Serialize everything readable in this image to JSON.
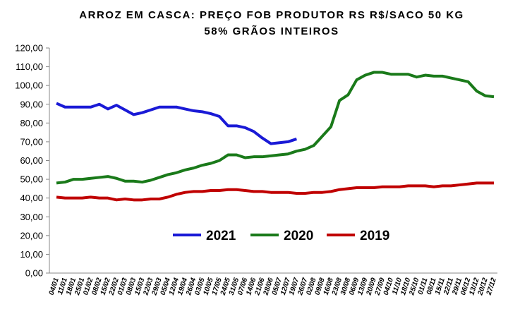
{
  "chart_data": {
    "type": "line",
    "title": "ARROZ EM CASCA: PREÇO FOB PRODUTOR RS R$/SACO 50 KG",
    "subtitle": "58% GRÃOS INTEIROS",
    "categories": [
      "04/01",
      "11/01",
      "18/01",
      "25/01",
      "01/02",
      "08/02",
      "15/02",
      "22/02",
      "01/03",
      "08/03",
      "15/03",
      "22/03",
      "29/03",
      "05/04",
      "12/04",
      "19/04",
      "26/04",
      "03/05",
      "10/05",
      "17/05",
      "24/05",
      "31/05",
      "07/06",
      "14/06",
      "21/06",
      "28/06",
      "05/07",
      "12/07",
      "19/07",
      "26/07",
      "02/08",
      "09/08",
      "16/08",
      "23/08",
      "30/08",
      "06/09",
      "13/09",
      "20/09",
      "27/09",
      "04/10",
      "11/10",
      "18/10",
      "25/10",
      "01/11",
      "08/11",
      "15/11",
      "22/11",
      "29/11",
      "06/12",
      "13/12",
      "20/12",
      "27/12"
    ],
    "series": [
      {
        "name": "2021",
        "color": "#1a1ad6",
        "values": [
          90.5,
          88.5,
          88.5,
          88.5,
          88.5,
          90,
          87.5,
          89.5,
          87,
          84.5,
          85.5,
          87,
          88.5,
          88.5,
          88.5,
          87.5,
          86.5,
          86,
          85,
          83.5,
          78.5,
          78.5,
          77.5,
          75.5,
          72,
          69,
          69.5,
          70,
          71.5,
          null,
          null,
          null,
          null,
          null,
          null,
          null,
          null,
          null,
          null,
          null,
          null,
          null,
          null,
          null,
          null,
          null,
          null,
          null,
          null,
          null,
          null,
          null
        ]
      },
      {
        "name": "2020",
        "color": "#1a7a1a",
        "values": [
          48,
          48.5,
          50,
          50,
          50.5,
          51,
          51.5,
          50.5,
          49,
          49,
          48.5,
          49.5,
          51,
          52.5,
          53.5,
          55,
          56,
          57.5,
          58.5,
          60,
          63,
          63,
          61.5,
          62,
          62,
          62.5,
          63,
          63.5,
          65,
          66,
          68,
          73,
          78,
          92,
          95,
          103,
          105.5,
          107,
          107,
          106,
          106,
          106,
          104.5,
          105.5,
          105,
          105,
          104,
          103,
          102,
          97,
          94.5,
          94
        ]
      },
      {
        "name": "2019",
        "color": "#c00000",
        "values": [
          40.5,
          40,
          40,
          40,
          40.5,
          40,
          40,
          39,
          39.5,
          39,
          39,
          39.5,
          39.5,
          40.5,
          42,
          43,
          43.5,
          43.5,
          44,
          44,
          44.5,
          44.5,
          44,
          43.5,
          43.5,
          43,
          43,
          43,
          42.5,
          42.5,
          43,
          43,
          43.5,
          44.5,
          45,
          45.5,
          45.5,
          45.5,
          46,
          46,
          46,
          46.5,
          46.5,
          46.5,
          46,
          46.5,
          46.5,
          47,
          47.5,
          48,
          48,
          48
        ]
      }
    ],
    "ylim": [
      0,
      120
    ],
    "yticks": [
      {
        "value": 0,
        "label": "0,00"
      },
      {
        "value": 10,
        "label": "10,00"
      },
      {
        "value": 20,
        "label": "20,00"
      },
      {
        "value": 30,
        "label": "30,00"
      },
      {
        "value": 40,
        "label": "40,00"
      },
      {
        "value": 50,
        "label": "50,00"
      },
      {
        "value": 60,
        "label": "60,00"
      },
      {
        "value": 70,
        "label": "70,00"
      },
      {
        "value": 80,
        "label": "80,00"
      },
      {
        "value": 90,
        "label": "90,00"
      },
      {
        "value": 100,
        "label": "100,00"
      },
      {
        "value": 110,
        "label": "110,00"
      },
      {
        "value": 120,
        "label": "120,00"
      }
    ],
    "grid": false,
    "legend": "bottom"
  }
}
